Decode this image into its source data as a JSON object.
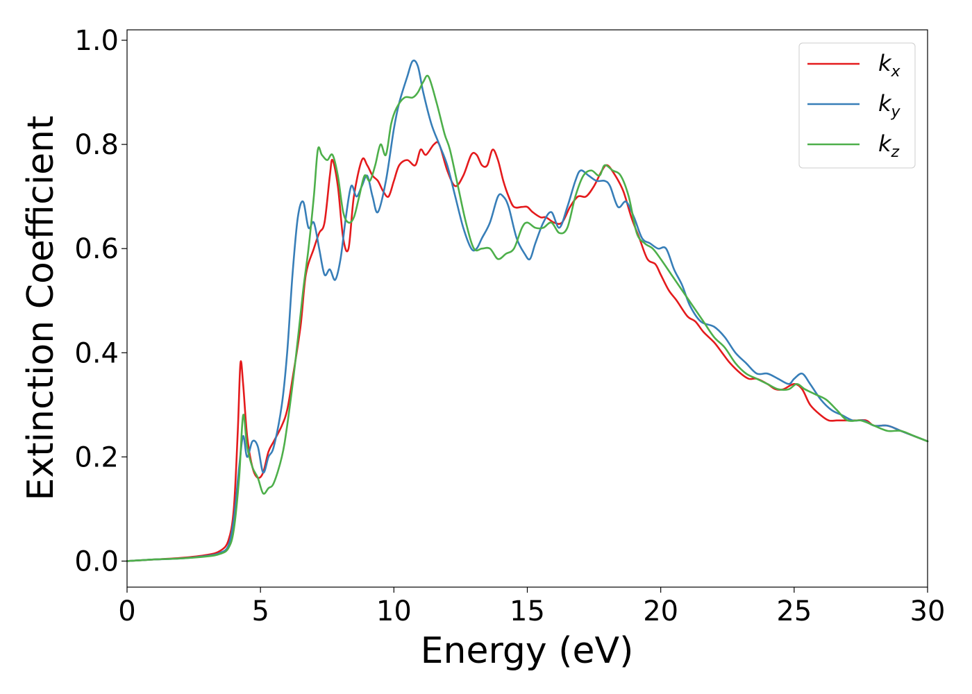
{
  "chart_data": {
    "type": "line",
    "title": "",
    "xlabel": "Energy (eV)",
    "ylabel": "Extinction Coefficient",
    "xlim": [
      0,
      30
    ],
    "ylim": [
      -0.05,
      1.02
    ],
    "xticks": [
      0,
      5,
      10,
      15,
      20,
      25,
      30
    ],
    "xtick_labels": [
      "0",
      "5",
      "10",
      "15",
      "20",
      "25",
      "30"
    ],
    "yticks": [
      0.0,
      0.2,
      0.4,
      0.6,
      0.8,
      1.0
    ],
    "ytick_labels": [
      "0.0",
      "0.2",
      "0.4",
      "0.6",
      "0.8",
      "1.0"
    ],
    "grid": false,
    "legend_position": "top-right",
    "series": [
      {
        "name": "k_x",
        "label_main": "k",
        "label_sub": "x",
        "color": "#e41a1c",
        "x": [
          0,
          1,
          2,
          3,
          3.5,
          3.8,
          4.0,
          4.15,
          4.25,
          4.35,
          4.5,
          4.7,
          4.9,
          5.1,
          5.3,
          5.5,
          5.8,
          6.0,
          6.2,
          6.5,
          6.7,
          7.0,
          7.2,
          7.4,
          7.6,
          7.7,
          7.9,
          8.1,
          8.3,
          8.5,
          8.8,
          9.0,
          9.2,
          9.4,
          9.6,
          9.8,
          10.0,
          10.2,
          10.5,
          10.8,
          11.0,
          11.2,
          11.5,
          11.7,
          12.0,
          12.3,
          12.6,
          12.9,
          13.1,
          13.3,
          13.5,
          13.7,
          13.9,
          14.1,
          14.3,
          14.5,
          14.8,
          15.0,
          15.2,
          15.5,
          15.7,
          16.0,
          16.3,
          16.6,
          16.9,
          17.2,
          17.5,
          17.8,
          18.0,
          18.3,
          18.6,
          18.9,
          19.2,
          19.5,
          19.8,
          20.0,
          20.3,
          20.6,
          21.0,
          21.3,
          21.6,
          22.0,
          22.3,
          22.6,
          23.0,
          23.3,
          23.6,
          24.0,
          24.3,
          24.6,
          25.0,
          25.3,
          25.6,
          26.0,
          26.3,
          26.6,
          27.0,
          27.3,
          27.7,
          28.0,
          28.5,
          29.0,
          29.5,
          30.0
        ],
        "y": [
          0.0,
          0.003,
          0.006,
          0.012,
          0.02,
          0.04,
          0.1,
          0.25,
          0.38,
          0.34,
          0.24,
          0.18,
          0.16,
          0.17,
          0.21,
          0.23,
          0.26,
          0.29,
          0.35,
          0.45,
          0.55,
          0.6,
          0.63,
          0.65,
          0.74,
          0.77,
          0.72,
          0.62,
          0.6,
          0.7,
          0.77,
          0.76,
          0.74,
          0.73,
          0.71,
          0.7,
          0.73,
          0.76,
          0.77,
          0.76,
          0.79,
          0.78,
          0.8,
          0.8,
          0.75,
          0.72,
          0.74,
          0.78,
          0.78,
          0.76,
          0.76,
          0.79,
          0.77,
          0.73,
          0.7,
          0.68,
          0.68,
          0.68,
          0.67,
          0.66,
          0.66,
          0.65,
          0.65,
          0.68,
          0.7,
          0.7,
          0.72,
          0.75,
          0.76,
          0.74,
          0.71,
          0.66,
          0.62,
          0.58,
          0.57,
          0.55,
          0.52,
          0.5,
          0.47,
          0.46,
          0.44,
          0.42,
          0.4,
          0.38,
          0.36,
          0.35,
          0.35,
          0.34,
          0.33,
          0.33,
          0.34,
          0.33,
          0.3,
          0.28,
          0.27,
          0.27,
          0.27,
          0.27,
          0.27,
          0.26,
          0.26,
          0.25,
          0.24,
          0.23
        ]
      },
      {
        "name": "k_y",
        "label_main": "k",
        "label_sub": "y",
        "color": "#377eb8",
        "x": [
          0,
          1,
          2,
          3,
          3.5,
          3.8,
          4.0,
          4.2,
          4.35,
          4.5,
          4.7,
          4.9,
          5.1,
          5.3,
          5.5,
          5.8,
          6.0,
          6.2,
          6.4,
          6.6,
          6.8,
          7.0,
          7.2,
          7.4,
          7.6,
          7.8,
          8.0,
          8.2,
          8.4,
          8.6,
          8.8,
          9.0,
          9.2,
          9.4,
          9.7,
          10.0,
          10.2,
          10.5,
          10.7,
          10.9,
          11.1,
          11.4,
          11.7,
          12.0,
          12.3,
          12.6,
          12.9,
          13.1,
          13.3,
          13.6,
          13.9,
          14.1,
          14.3,
          14.6,
          14.9,
          15.1,
          15.3,
          15.6,
          15.9,
          16.2,
          16.5,
          16.8,
          17.0,
          17.3,
          17.6,
          17.9,
          18.1,
          18.4,
          18.7,
          19.0,
          19.3,
          19.6,
          19.9,
          20.2,
          20.5,
          20.8,
          21.1,
          21.5,
          22.0,
          22.4,
          22.8,
          23.2,
          23.6,
          24.0,
          24.4,
          24.8,
          25.0,
          25.3,
          25.6,
          26.0,
          26.4,
          26.8,
          27.2,
          27.6,
          28.0,
          28.5,
          29.0,
          29.5,
          30.0
        ],
        "y": [
          0.0,
          0.003,
          0.005,
          0.01,
          0.016,
          0.03,
          0.08,
          0.18,
          0.24,
          0.2,
          0.23,
          0.22,
          0.17,
          0.2,
          0.22,
          0.3,
          0.4,
          0.55,
          0.66,
          0.69,
          0.64,
          0.65,
          0.6,
          0.55,
          0.56,
          0.54,
          0.58,
          0.66,
          0.72,
          0.7,
          0.72,
          0.74,
          0.7,
          0.67,
          0.73,
          0.83,
          0.88,
          0.93,
          0.96,
          0.95,
          0.9,
          0.84,
          0.8,
          0.76,
          0.7,
          0.64,
          0.6,
          0.6,
          0.62,
          0.65,
          0.7,
          0.7,
          0.68,
          0.62,
          0.59,
          0.58,
          0.61,
          0.65,
          0.67,
          0.64,
          0.68,
          0.73,
          0.75,
          0.74,
          0.73,
          0.73,
          0.72,
          0.68,
          0.69,
          0.66,
          0.62,
          0.61,
          0.6,
          0.6,
          0.56,
          0.53,
          0.49,
          0.46,
          0.45,
          0.43,
          0.4,
          0.38,
          0.36,
          0.36,
          0.35,
          0.34,
          0.35,
          0.36,
          0.34,
          0.31,
          0.29,
          0.28,
          0.27,
          0.27,
          0.26,
          0.26,
          0.25,
          0.24,
          0.23
        ]
      },
      {
        "name": "k_z",
        "label_main": "k",
        "label_sub": "z",
        "color": "#4daf4a",
        "x": [
          0,
          1,
          2,
          3,
          3.5,
          3.8,
          4.0,
          4.2,
          4.35,
          4.5,
          4.7,
          4.9,
          5.1,
          5.3,
          5.5,
          5.8,
          6.0,
          6.3,
          6.6,
          6.8,
          7.0,
          7.15,
          7.3,
          7.5,
          7.7,
          7.9,
          8.1,
          8.3,
          8.5,
          8.7,
          8.9,
          9.1,
          9.3,
          9.5,
          9.7,
          9.9,
          10.1,
          10.4,
          10.7,
          10.9,
          11.1,
          11.3,
          11.6,
          11.9,
          12.1,
          12.4,
          12.7,
          13.0,
          13.3,
          13.6,
          13.9,
          14.2,
          14.5,
          14.8,
          15.0,
          15.3,
          15.6,
          15.9,
          16.2,
          16.5,
          16.8,
          17.1,
          17.4,
          17.7,
          17.9,
          18.2,
          18.5,
          18.8,
          19.1,
          19.4,
          19.7,
          20.0,
          20.4,
          20.8,
          21.2,
          21.6,
          22.0,
          22.4,
          22.8,
          23.2,
          23.6,
          24.0,
          24.4,
          24.8,
          25.1,
          25.4,
          25.8,
          26.2,
          26.6,
          27.0,
          27.5,
          28.0,
          28.5,
          29.0,
          29.5,
          30.0
        ],
        "y": [
          0.0,
          0.003,
          0.005,
          0.009,
          0.014,
          0.025,
          0.06,
          0.16,
          0.28,
          0.22,
          0.18,
          0.16,
          0.13,
          0.14,
          0.15,
          0.2,
          0.26,
          0.38,
          0.52,
          0.6,
          0.7,
          0.79,
          0.78,
          0.77,
          0.78,
          0.74,
          0.67,
          0.65,
          0.66,
          0.7,
          0.74,
          0.73,
          0.76,
          0.8,
          0.78,
          0.84,
          0.87,
          0.89,
          0.89,
          0.9,
          0.92,
          0.93,
          0.88,
          0.82,
          0.79,
          0.72,
          0.65,
          0.6,
          0.6,
          0.6,
          0.58,
          0.59,
          0.6,
          0.64,
          0.65,
          0.64,
          0.64,
          0.65,
          0.63,
          0.64,
          0.7,
          0.74,
          0.75,
          0.74,
          0.76,
          0.75,
          0.74,
          0.7,
          0.63,
          0.61,
          0.6,
          0.58,
          0.55,
          0.52,
          0.49,
          0.46,
          0.43,
          0.41,
          0.38,
          0.36,
          0.35,
          0.34,
          0.33,
          0.33,
          0.34,
          0.33,
          0.32,
          0.31,
          0.29,
          0.27,
          0.27,
          0.26,
          0.25,
          0.25,
          0.24,
          0.23
        ]
      }
    ]
  }
}
